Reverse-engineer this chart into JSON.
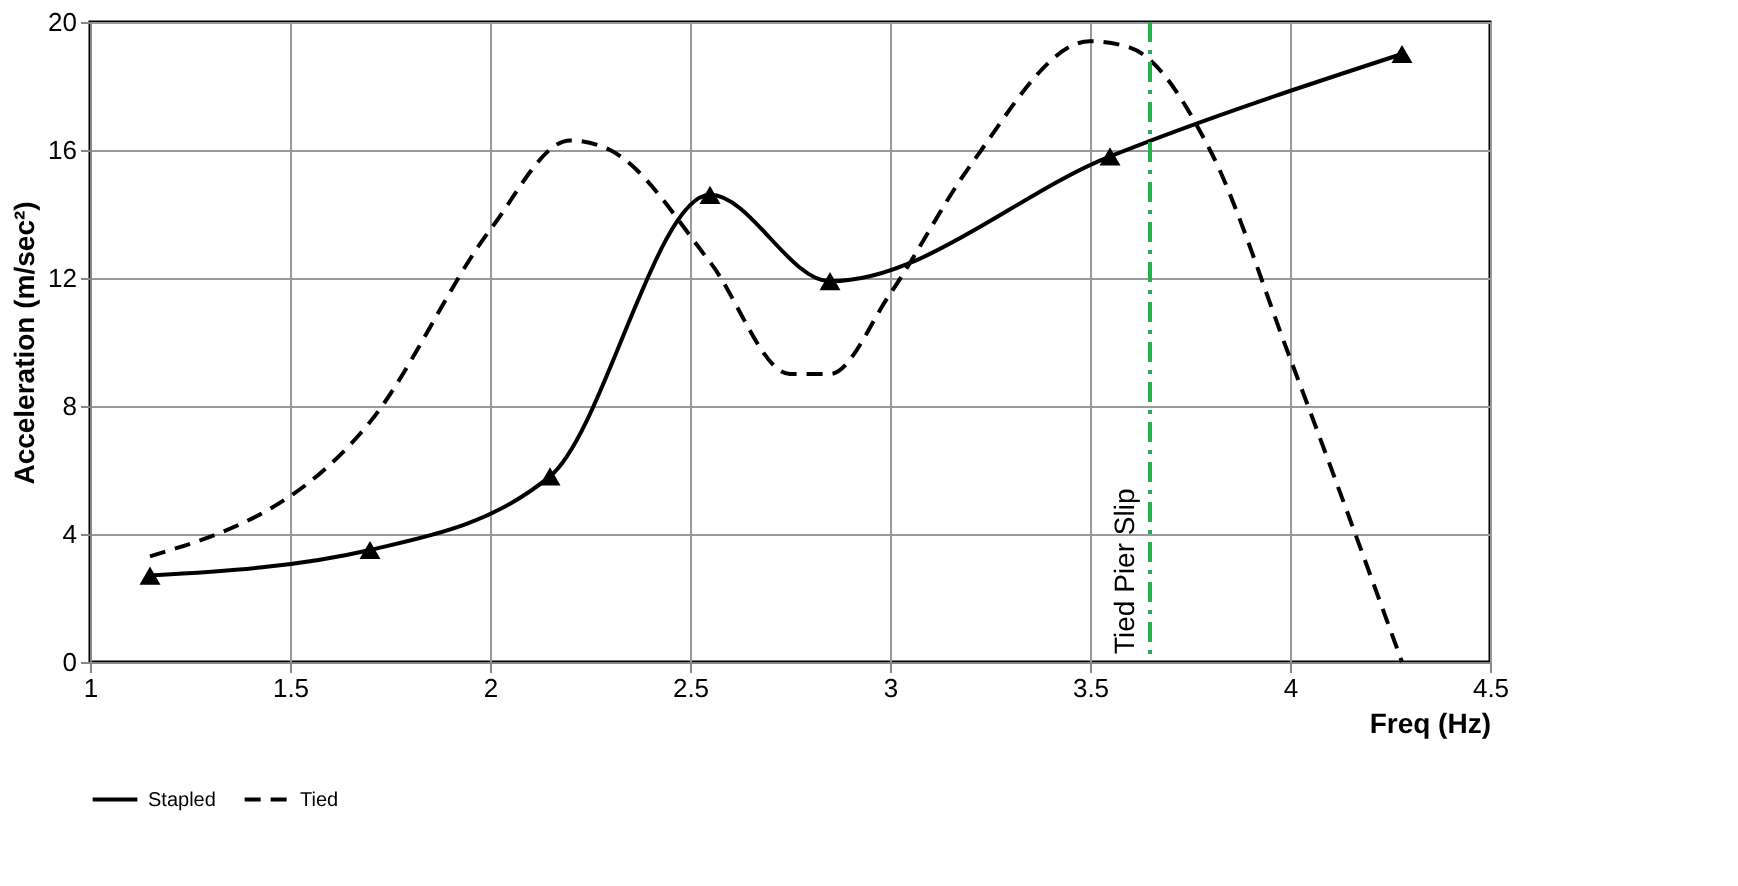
{
  "chart_data": {
    "type": "line",
    "xlabel": "Freq (Hz)",
    "ylabel": "Acceleration (m/sec²)",
    "xlim": [
      1,
      4.5
    ],
    "xticks": [
      1,
      1.5,
      2,
      2.5,
      3,
      3.5,
      4,
      4.5
    ],
    "ylim": [
      0,
      20
    ],
    "yticks": [
      0,
      4,
      8,
      12,
      16,
      20
    ],
    "grid": true,
    "legend": "bottom",
    "series": [
      {
        "name": "Stapled",
        "color": "#000000",
        "marker": "triangle",
        "line_style": "solid",
        "x": [
          1.15,
          1.7,
          2.15,
          2.55,
          2.85,
          3.55,
          4.28
        ],
        "values": [
          2.7,
          3.5,
          5.8,
          14.6,
          11.9,
          15.8,
          19.0
        ]
      },
      {
        "name": "Tied",
        "color": "#000000",
        "marker": "none",
        "line_style": "dashed",
        "x": [
          1.15,
          1.7,
          2.0,
          2.2,
          2.3,
          2.55,
          2.75,
          2.85,
          3.0,
          3.2,
          3.5,
          3.6,
          3.8,
          4.0,
          4.28
        ],
        "values": [
          3.3,
          7.5,
          13.5,
          16.3,
          16.0,
          12.5,
          9.0,
          9.0,
          11.5,
          15.5,
          19.4,
          19.2,
          16.0,
          9.5,
          0
        ]
      }
    ],
    "ref_lines": [
      {
        "axis": "x",
        "value": 3.65,
        "label": "Tied Pier Slip",
        "color": "#22b14c",
        "line_style": "dashdot"
      }
    ]
  }
}
